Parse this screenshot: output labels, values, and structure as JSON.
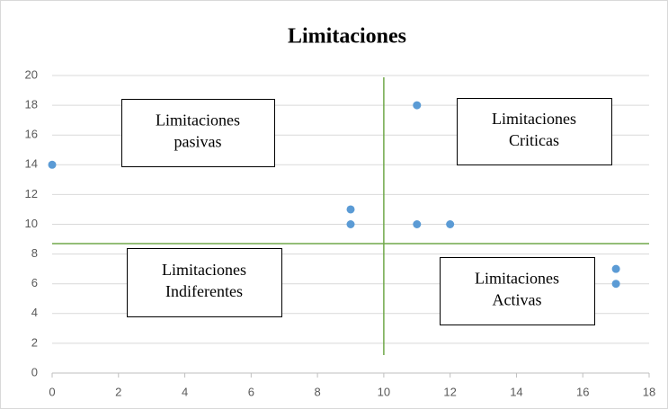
{
  "chart_data": {
    "type": "scatter",
    "title": "Limitaciones",
    "x": [
      0,
      9,
      9,
      11,
      11,
      12,
      17,
      17
    ],
    "values": [
      14,
      11,
      10,
      18,
      10,
      10,
      7,
      6
    ],
    "color": "#5b9bd5",
    "xlim": [
      0,
      18
    ],
    "xticks": [
      0,
      2,
      4,
      6,
      8,
      10,
      12,
      14,
      16,
      18
    ],
    "ylim": [
      0,
      20
    ],
    "yticks": [
      0,
      2,
      4,
      6,
      8,
      10,
      12,
      14,
      16,
      18,
      20
    ],
    "grid": true,
    "divider_x": 10,
    "divider_y": 8.7,
    "divider_color": "#70a84a",
    "annotations": [
      [
        "Limitaciones",
        "pasivas"
      ],
      [
        "Limitaciones",
        "Criticas"
      ],
      [
        "Limitaciones",
        "Indiferentes"
      ],
      [
        "Limitaciones",
        "Activas"
      ]
    ]
  }
}
